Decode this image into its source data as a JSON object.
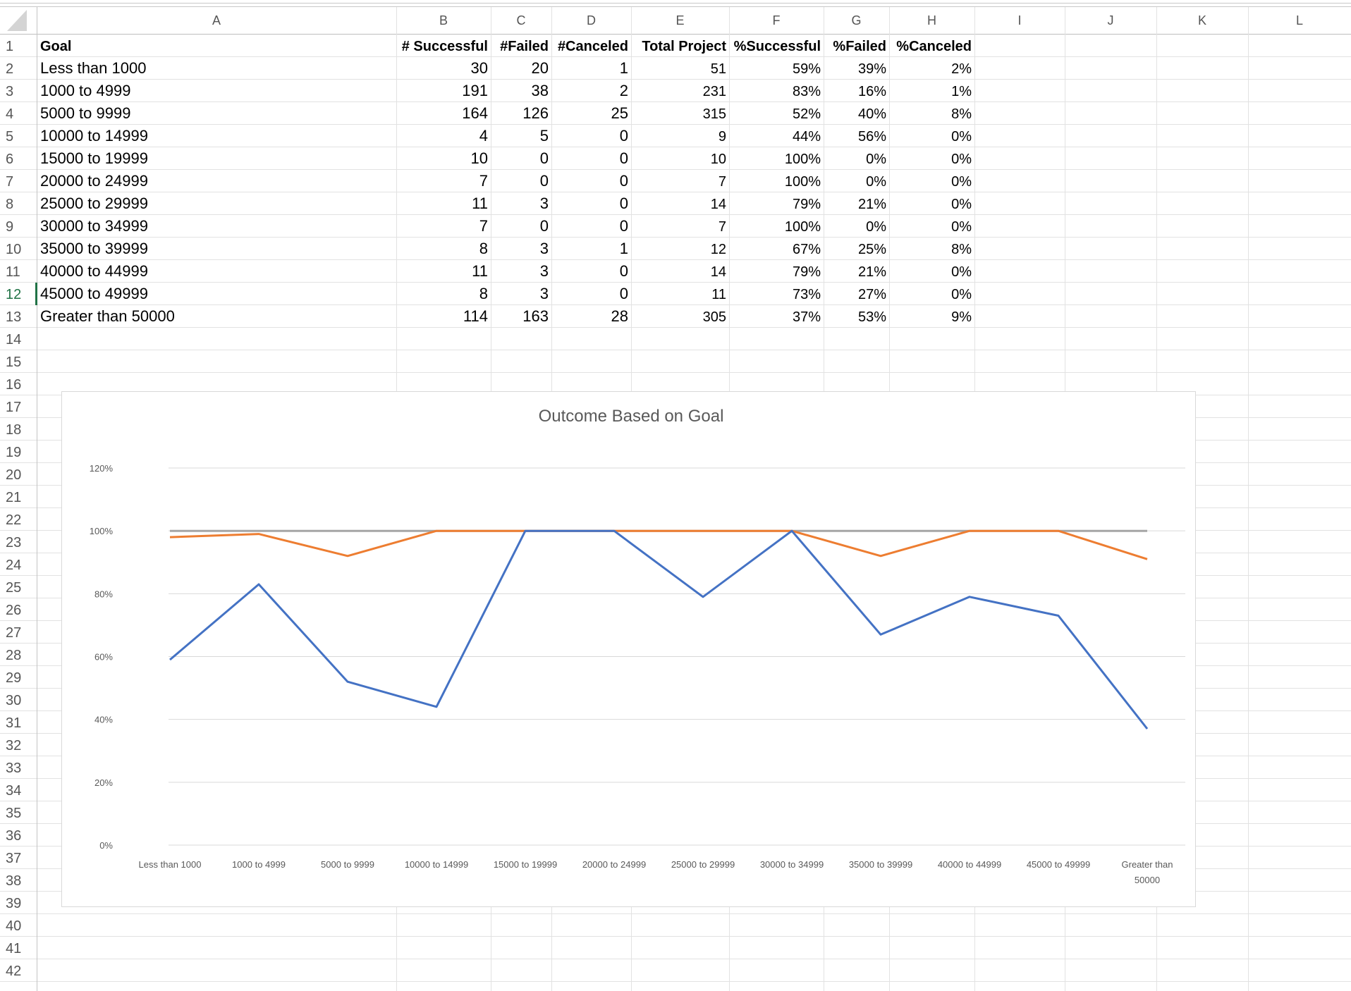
{
  "columns": [
    "A",
    "B",
    "C",
    "D",
    "E",
    "F",
    "G",
    "H",
    "I",
    "J",
    "K",
    "L"
  ],
  "row_count": 42,
  "header": [
    "Goal",
    "# Successful",
    "#Failed",
    "#Canceled",
    "Total Project",
    "%Successful",
    "%Failed",
    "%Canceled"
  ],
  "rows": [
    [
      "Less than 1000",
      "30",
      "20",
      "1",
      "51",
      "59%",
      "39%",
      "2%"
    ],
    [
      "1000 to 4999",
      "191",
      "38",
      "2",
      "231",
      "83%",
      "16%",
      "1%"
    ],
    [
      "5000 to 9999",
      "164",
      "126",
      "25",
      "315",
      "52%",
      "40%",
      "8%"
    ],
    [
      "10000 to 14999",
      "4",
      "5",
      "0",
      "9",
      "44%",
      "56%",
      "0%"
    ],
    [
      "15000 to 19999",
      "10",
      "0",
      "0",
      "10",
      "100%",
      "0%",
      "0%"
    ],
    [
      "20000 to 24999",
      "7",
      "0",
      "0",
      "7",
      "100%",
      "0%",
      "0%"
    ],
    [
      "25000 to 29999",
      "11",
      "3",
      "0",
      "14",
      "79%",
      "21%",
      "0%"
    ],
    [
      "30000 to 34999",
      "7",
      "0",
      "0",
      "7",
      "100%",
      "0%",
      "0%"
    ],
    [
      "35000 to 39999",
      "8",
      "3",
      "1",
      "12",
      "67%",
      "25%",
      "8%"
    ],
    [
      "40000 to 44999",
      "11",
      "3",
      "0",
      "14",
      "79%",
      "21%",
      "0%"
    ],
    [
      "45000 to 49999",
      "8",
      "3",
      "0",
      "11",
      "73%",
      "27%",
      "0%"
    ],
    [
      "Greater than 50000",
      "114",
      "163",
      "28",
      "305",
      "37%",
      "53%",
      "9%"
    ]
  ],
  "selected_row": 12,
  "chart_data": {
    "type": "area",
    "title": "Outcome Based on Goal",
    "categories": [
      "Less than 1000",
      "1000 to 4999",
      "5000 to 9999",
      "10000 to 14999",
      "15000 to 19999",
      "20000 to 24999",
      "25000 to 29999",
      "30000 to 34999",
      "35000 to 39999",
      "40000 to 44999",
      "45000 to 49999",
      "Greater than 50000"
    ],
    "series": [
      {
        "values": [
          59,
          83,
          52,
          44,
          100,
          100,
          79,
          100,
          67,
          79,
          73,
          37
        ],
        "color": "#4472C4"
      },
      {
        "values": [
          98,
          99,
          92,
          100,
          100,
          100,
          100,
          100,
          92,
          100,
          100,
          91
        ],
        "color": "#ED7D31"
      },
      {
        "values": [
          100,
          100,
          100,
          100,
          100,
          100,
          100,
          100,
          100,
          100,
          100,
          100
        ],
        "color": "#A5A5A5"
      }
    ],
    "ylim": [
      0,
      120
    ],
    "yticks": [
      "0%",
      "20%",
      "40%",
      "60%",
      "80%",
      "100%",
      "120%"
    ],
    "grid": true,
    "legend": "none"
  }
}
